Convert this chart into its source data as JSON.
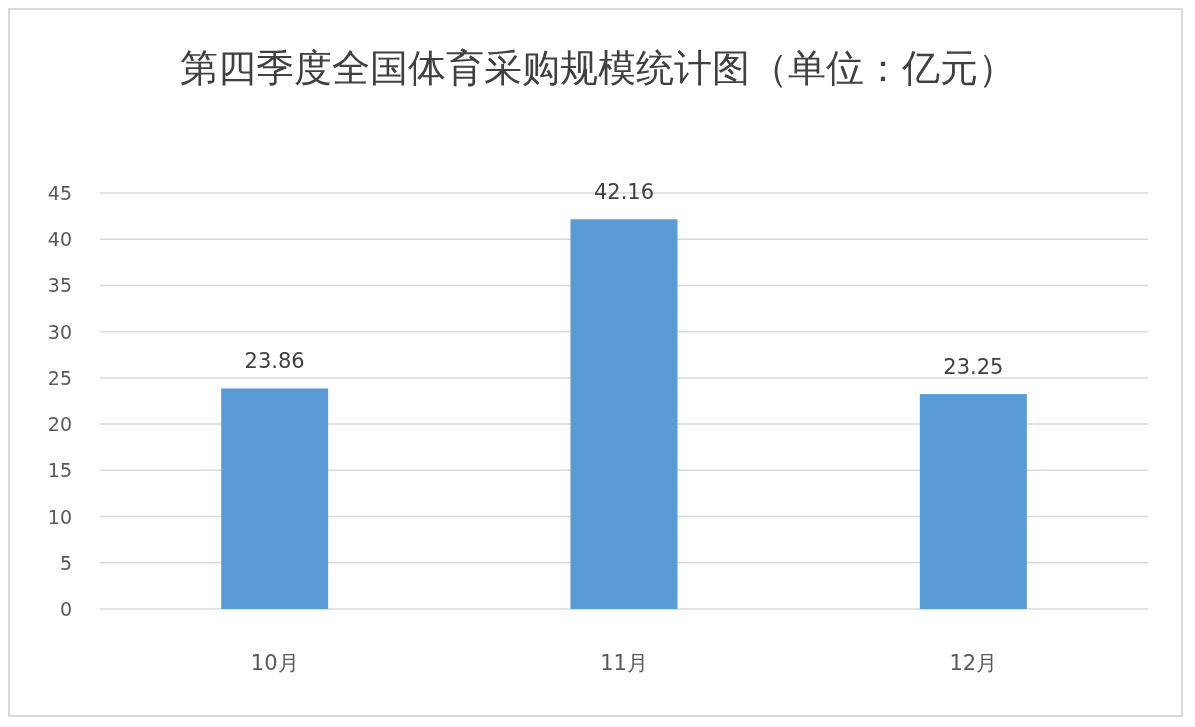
{
  "chart_data": {
    "type": "bar",
    "title": "第四季度全国体育采购规模统计图（单位：亿元）",
    "categories": [
      "10月",
      "11月",
      "12月"
    ],
    "values": [
      23.86,
      42.16,
      23.25
    ],
    "color": "#5b9bd5",
    "ylim": [
      0,
      45
    ],
    "yticks": [
      0,
      5,
      10,
      15,
      20,
      25,
      30,
      35,
      40,
      45
    ],
    "grid": "y",
    "data_labels": true
  }
}
